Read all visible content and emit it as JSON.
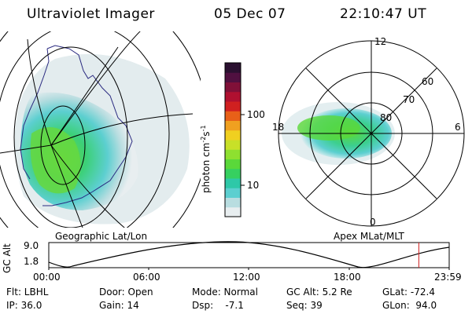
{
  "header": {
    "instrument": "Ultraviolet Imager",
    "date": "05 Dec 07",
    "time": "22:10:47 UT"
  },
  "geo_map": {
    "label": "Geographic Lat/Lon"
  },
  "polar_map": {
    "label": "Apex MLat/MLT",
    "mlt_labels": [
      "12",
      "18",
      "6",
      "0"
    ],
    "lat_labels": [
      "60",
      "70",
      "80"
    ]
  },
  "colorbar": {
    "label_main": "photon cm",
    "label_exp1": "-2",
    "label_mid": "s",
    "label_exp2": "-1",
    "ticks": [
      "100",
      "10"
    ],
    "colors": [
      "#e8eef0",
      "#b8dde0",
      "#5ccfd0",
      "#2ec8a8",
      "#36d060",
      "#5ad83a",
      "#8ee030",
      "#c8e028",
      "#f0d020",
      "#f0a020",
      "#e86018",
      "#d02020",
      "#b01030",
      "#801038",
      "#501040",
      "#2a1030"
    ]
  },
  "altitude_plot": {
    "ylabel": "GC Alt",
    "y_ticks": [
      "9.0",
      "1.8"
    ],
    "x_ticks": [
      "00:00",
      "06:00",
      "12:00",
      "18:00",
      "23:59"
    ],
    "marker_time_hours": 22.18,
    "marker_color": "#d02020"
  },
  "info": {
    "flt": "Flt: LBHL",
    "ip": "IP: 36.0",
    "door": "Door: Open",
    "gain": "Gain: 14",
    "mode": "Mode: Normal",
    "dsp": "Dsp:    -7.1",
    "gcalt": "GC Alt: 5.2 Re",
    "seq": "Seq: 39",
    "glat": "GLat: -72.4",
    "glon": "GLon:  94.0"
  }
}
